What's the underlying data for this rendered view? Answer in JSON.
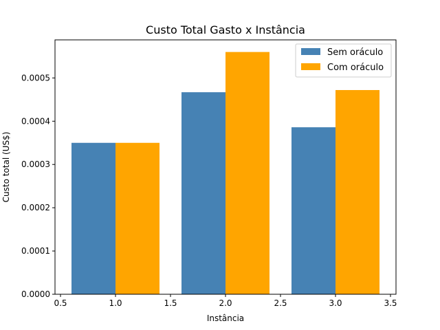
{
  "chart_data": {
    "type": "bar",
    "title": "Custo Total Gasto x Instância",
    "xlabel": "Instância",
    "ylabel": "Custo total (US$)",
    "x": [
      1.0,
      2.0,
      3.0
    ],
    "bar_width": 0.4,
    "series": [
      {
        "name": "Sem oráculo",
        "color": "#4682b4",
        "offset": -0.2,
        "values": [
          0.00035,
          0.000467,
          0.000386
        ]
      },
      {
        "name": "Com oráculo",
        "color": "#ffa500",
        "offset": 0.2,
        "values": [
          0.00035,
          0.00056,
          0.000472
        ]
      }
    ],
    "xlim": [
      0.45,
      3.55
    ],
    "ylim": [
      0,
      0.000588
    ],
    "xticks": [
      0.5,
      1.0,
      1.5,
      2.0,
      2.5,
      3.0,
      3.5
    ],
    "xtick_labels": [
      "0.5",
      "1.0",
      "1.5",
      "2.0",
      "2.5",
      "3.0",
      "3.5"
    ],
    "yticks": [
      0,
      0.0001,
      0.0002,
      0.0003,
      0.0004,
      0.0005
    ],
    "ytick_labels": [
      "0.0000",
      "0.0001",
      "0.0002",
      "0.0003",
      "0.0004",
      "0.0005"
    ],
    "grid": false,
    "legend_position": "top-right"
  }
}
